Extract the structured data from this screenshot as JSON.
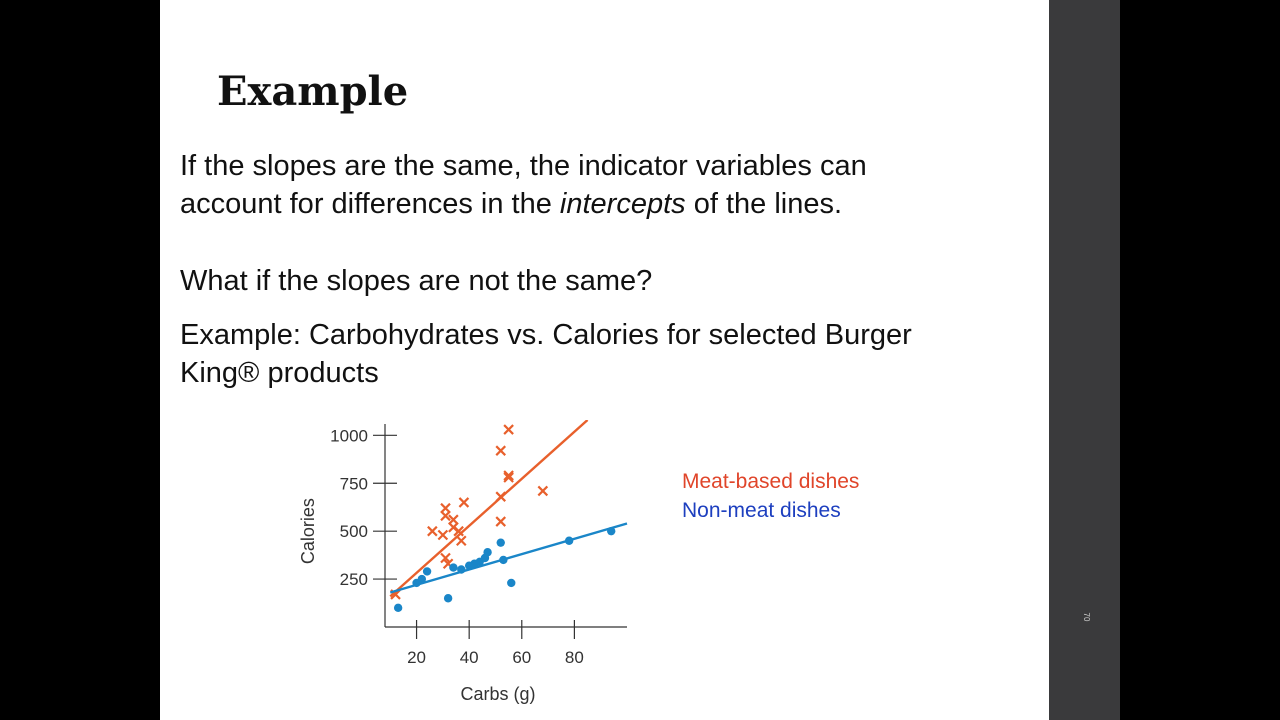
{
  "slide": {
    "title": "Example",
    "paragraph1": {
      "before_italic": "If the slopes are the same, the indicator variables can account for differences in the ",
      "italic": "intercepts",
      "after_italic": " of the lines."
    },
    "paragraph2": "What if the slopes are not the same?",
    "paragraph3": "Example: Carbohydrates vs. Calories for selected Burger King® products",
    "legend": {
      "meat": "Meat-based dishes",
      "nonmeat": "Non-meat dishes"
    },
    "page_number": "70"
  },
  "colors": {
    "meat": "#e8602c",
    "nonmeat": "#1a86c8",
    "legend_meat": "#e0452a",
    "legend_nonmeat": "#1d3fbf"
  },
  "chart_data": {
    "type": "scatter",
    "title": "",
    "xlabel": "Carbs (g)",
    "ylabel": "Calories",
    "xlim": [
      8,
      100
    ],
    "ylim": [
      0,
      1080
    ],
    "xticks": [
      20,
      40,
      60,
      80
    ],
    "yticks": [
      250,
      500,
      750,
      1000
    ],
    "grid": false,
    "legend_position": "right",
    "series": [
      {
        "name": "Meat-based dishes",
        "marker": "x",
        "points": [
          [
            12,
            170
          ],
          [
            26,
            500
          ],
          [
            30,
            480
          ],
          [
            31,
            580
          ],
          [
            31,
            620
          ],
          [
            31,
            360
          ],
          [
            32,
            330
          ],
          [
            34,
            560
          ],
          [
            34,
            520
          ],
          [
            36,
            500
          ],
          [
            37,
            450
          ],
          [
            38,
            650
          ],
          [
            52,
            920
          ],
          [
            52,
            680
          ],
          [
            52,
            550
          ],
          [
            55,
            1030
          ],
          [
            55,
            790
          ],
          [
            55,
            780
          ],
          [
            68,
            710
          ]
        ],
        "fit_line": [
          [
            10,
            160
          ],
          [
            85,
            1080
          ]
        ]
      },
      {
        "name": "Non-meat dishes",
        "marker": "dot",
        "points": [
          [
            13,
            100
          ],
          [
            20,
            230
          ],
          [
            22,
            250
          ],
          [
            24,
            290
          ],
          [
            32,
            150
          ],
          [
            34,
            310
          ],
          [
            37,
            300
          ],
          [
            40,
            320
          ],
          [
            42,
            330
          ],
          [
            44,
            340
          ],
          [
            46,
            360
          ],
          [
            47,
            390
          ],
          [
            52,
            440
          ],
          [
            53,
            350
          ],
          [
            56,
            230
          ],
          [
            78,
            450
          ],
          [
            94,
            500
          ]
        ],
        "fit_line": [
          [
            10,
            180
          ],
          [
            100,
            540
          ]
        ]
      }
    ]
  }
}
